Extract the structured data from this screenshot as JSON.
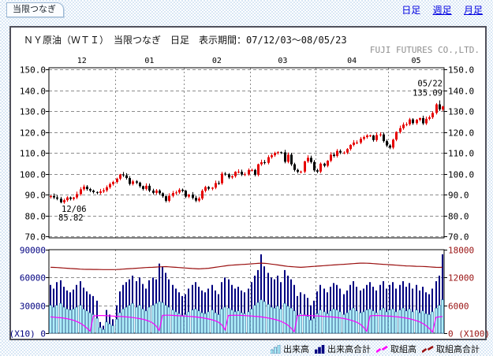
{
  "tab": {
    "label": "当限つなぎ"
  },
  "nav": {
    "links": [
      {
        "label": "日足",
        "underline": false,
        "current": true
      },
      {
        "label": "週足",
        "underline": true,
        "current": false
      },
      {
        "label": "月足",
        "underline": true,
        "current": false
      }
    ]
  },
  "header": {
    "title": "ＮＹ原油（ＷＴＩ）　当限つなぎ　日足　表示期間：07/12/03～08/05/23",
    "company": "FUJI FUTURES CO.,LTD."
  },
  "colors": {
    "up_candle": "#e60000",
    "down_candle": "#000000",
    "volume_front_fill": "#aeeffa",
    "volume_front_stroke": "#2f6f9f",
    "volume_total": "#000080",
    "open_interest_front": "#ff00ff",
    "open_interest_total": "#9a1010",
    "left_axis_label": "#000080",
    "right_axis_label": "#991111",
    "link": "#0000e0",
    "grid": "#8c8c8c"
  },
  "legend": {
    "items": [
      {
        "label": "出来高",
        "type": "bars",
        "color": "#aeeffa",
        "stroke": "#2f6f9f"
      },
      {
        "label": "出来高合計",
        "type": "bars",
        "color": "#000080",
        "stroke": "#000080"
      },
      {
        "label": "取組高",
        "type": "line",
        "color": "#ff00ff"
      },
      {
        "label": "取組高合計",
        "type": "line",
        "color": "#9a1010"
      }
    ]
  },
  "chart_data": [
    {
      "type": "candlestick",
      "title": "ＮＹ原油（ＷＴＩ） 当限つなぎ 日足",
      "period": "07/12/03～08/05/23",
      "x_month_labels": [
        "12",
        "01",
        "02",
        "03",
        "04",
        "05"
      ],
      "month_start_index": [
        0,
        20,
        41,
        61,
        81,
        103
      ],
      "ylim": [
        70,
        150
      ],
      "ytick_step": 10,
      "grid": true,
      "up_color": "#e60000",
      "down_color": "#000000",
      "first_open": 88.8,
      "closes": [
        89.3,
        88.6,
        88.0,
        86.3,
        87.3,
        88.6,
        87.9,
        88.6,
        90.2,
        92.5,
        93.8,
        92.6,
        91.9,
        91.2,
        90.8,
        91.5,
        92.0,
        93.5,
        95.0,
        96.0,
        97.6,
        99.6,
        99.2,
        97.9,
        95.1,
        96.3,
        95.7,
        94.0,
        92.7,
        94.2,
        91.9,
        90.8,
        91.9,
        90.6,
        89.2,
        87.0,
        89.4,
        90.7,
        91.0,
        92.3,
        91.8,
        89.0,
        90.0,
        88.4,
        87.1,
        88.1,
        91.8,
        93.6,
        92.8,
        93.3,
        95.5,
        95.4,
        100.0,
        99.7,
        98.2,
        98.8,
        100.9,
        100.9,
        99.6,
        99.7,
        101.8,
        101.8,
        99.5,
        104.5,
        105.5,
        105.2,
        107.9,
        108.8,
        109.9,
        110.3,
        110.2,
        105.7,
        109.1,
        104.5,
        101.8,
        100.9,
        101.0,
        105.9,
        107.6,
        105.6,
        101.6,
        101.0,
        104.8,
        103.8,
        106.2,
        109.1,
        108.5,
        110.9,
        110.1,
        110.1,
        111.8,
        113.8,
        114.9,
        114.9,
        116.7,
        117.5,
        118.3,
        118.3,
        116.1,
        118.5,
        118.8,
        115.6,
        113.5,
        112.5,
        116.3,
        120.0,
        121.8,
        123.5,
        123.7,
        126.0,
        124.2,
        125.8,
        126.6,
        124.1,
        126.3,
        127.0,
        129.1,
        133.2,
        130.8,
        132.2
      ],
      "low_override": {
        "3": 85.82
      },
      "high_override": {
        "118": 135.09
      },
      "annotations": [
        {
          "date": "12/06",
          "value": 85.82,
          "index": 3,
          "placement": "below"
        },
        {
          "date": "05/22",
          "value": 135.09,
          "index": 118,
          "placement": "above"
        }
      ]
    },
    {
      "type": "bar-line",
      "left_axis": {
        "ticks": [
          0,
          30000,
          60000,
          90000
        ],
        "unit": "(X10)",
        "color": "#000080"
      },
      "right_axis": {
        "ticks": [
          0,
          6000,
          12000,
          18000
        ],
        "unit": "(X100)",
        "color": "#991111"
      },
      "series": [
        {
          "name": "出来高",
          "type": "bar",
          "axis": "left",
          "color": "#aeeffa",
          "values": [
            30000,
            28000,
            30000,
            32000,
            28000,
            26000,
            25000,
            26000,
            28000,
            30000,
            26000,
            24000,
            22000,
            20000,
            16000,
            6000,
            4000,
            12000,
            10000,
            8000,
            15000,
            22000,
            26000,
            28000,
            30000,
            32000,
            28000,
            30000,
            26000,
            24000,
            28000,
            30000,
            32000,
            34000,
            33000,
            30000,
            28000,
            25000,
            23000,
            21000,
            19000,
            20000,
            23000,
            25000,
            26000,
            24000,
            22000,
            21000,
            23000,
            25000,
            22000,
            20000,
            26000,
            28000,
            27000,
            25000,
            23000,
            24000,
            22000,
            21000,
            23000,
            26000,
            30000,
            33000,
            36000,
            34000,
            31000,
            28000,
            27000,
            29000,
            26000,
            32000,
            29000,
            27000,
            24000,
            19000,
            21000,
            20000,
            18000,
            14000,
            16000,
            21000,
            25000,
            23000,
            21000,
            24000,
            26000,
            25000,
            23000,
            20000,
            22000,
            25000,
            27000,
            24000,
            22000,
            23000,
            25000,
            26000,
            24000,
            22000,
            25000,
            27000,
            23000,
            25000,
            26000,
            23000,
            25000,
            27000,
            24000,
            26000,
            23000,
            25000,
            22000,
            24000,
            21000,
            20000,
            23000,
            27000,
            30000,
            36000
          ]
        },
        {
          "name": "出来高合計",
          "type": "bar",
          "axis": "left",
          "color": "#000080",
          "values": [
            52000,
            48000,
            55000,
            57000,
            50000,
            46000,
            44000,
            47000,
            52000,
            56000,
            49000,
            45000,
            42000,
            40000,
            35000,
            12000,
            8000,
            25000,
            20000,
            15000,
            30000,
            45000,
            52000,
            55000,
            58000,
            62000,
            56000,
            60000,
            53000,
            48000,
            57000,
            60000,
            58000,
            75000,
            72000,
            65000,
            58000,
            52000,
            48000,
            44000,
            40000,
            42000,
            48000,
            52000,
            55000,
            50000,
            46000,
            44000,
            48000,
            52000,
            46000,
            42000,
            55000,
            60000,
            58000,
            52000,
            48000,
            50000,
            46000,
            44000,
            48000,
            55000,
            62000,
            68000,
            85000,
            72000,
            65000,
            60000,
            58000,
            62000,
            55000,
            68000,
            62000,
            58000,
            52000,
            40000,
            44000,
            42000,
            38000,
            30000,
            35000,
            45000,
            52000,
            48000,
            44000,
            50000,
            54000,
            52000,
            48000,
            42000,
            46000,
            52000,
            56000,
            50000,
            46000,
            48000,
            52000,
            55000,
            50000,
            46000,
            52000,
            56000,
            48000,
            52000,
            55000,
            48000,
            52000,
            56000,
            50000,
            54000,
            48000,
            52000,
            46000,
            50000,
            44000,
            42000,
            48000,
            56000,
            62000,
            85000
          ]
        },
        {
          "name": "取組高",
          "type": "line",
          "axis": "left",
          "color": "#ff00ff",
          "values": [
            17500,
            17200,
            16900,
            16600,
            16200,
            15600,
            14800,
            13800,
            12500,
            10800,
            8500,
            5500,
            2000,
            18500,
            18800,
            19000,
            19000,
            18800,
            18600,
            18400,
            18200,
            18000,
            17800,
            17500,
            17200,
            16800,
            16300,
            15700,
            15000,
            14000,
            12800,
            11000,
            8000,
            3000,
            19200,
            19400,
            19400,
            19200,
            19000,
            18800,
            18600,
            18400,
            18100,
            17800,
            17500,
            17100,
            16600,
            16000,
            15300,
            14400,
            13300,
            11800,
            9000,
            3500,
            19000,
            19300,
            19400,
            19300,
            19100,
            18900,
            18700,
            18500,
            18200,
            17900,
            17500,
            17000,
            16400,
            15700,
            14900,
            13900,
            12700,
            11000,
            8800,
            5500,
            1500,
            18800,
            19100,
            19200,
            19100,
            18900,
            18700,
            18500,
            18300,
            18100,
            17900,
            17600,
            17300,
            16900,
            16400,
            15800,
            15100,
            14200,
            13100,
            11700,
            9800,
            6500,
            2000,
            18600,
            18900,
            19000,
            18900,
            18700,
            18500,
            18300,
            18000,
            17700,
            17300,
            16800,
            16200,
            15500,
            14600,
            13500,
            12200,
            10500,
            8200,
            5000,
            1200,
            17000,
            17600,
            17900
          ]
        },
        {
          "name": "取組高合計",
          "type": "line",
          "axis": "right",
          "color": "#9a1010",
          "values": [
            14200,
            14180,
            14150,
            14100,
            14050,
            14000,
            13950,
            13900,
            13850,
            13800,
            13780,
            13760,
            13750,
            13740,
            13730,
            13720,
            13710,
            13700,
            13700,
            13700,
            13720,
            13750,
            13800,
            13850,
            13900,
            13950,
            14000,
            14050,
            14100,
            14150,
            14180,
            14200,
            14250,
            14300,
            14320,
            14350,
            14300,
            14250,
            14200,
            14150,
            14100,
            14050,
            14000,
            13950,
            13900,
            13850,
            13900,
            13950,
            14000,
            14100,
            14200,
            14300,
            14400,
            14500,
            14600,
            14650,
            14700,
            14750,
            14800,
            14850,
            14900,
            14950,
            15000,
            15050,
            15100,
            15050,
            15000,
            14900,
            14800,
            14700,
            14600,
            14500,
            14400,
            14350,
            14300,
            14250,
            14200,
            14250,
            14300,
            14350,
            14400,
            14450,
            14500,
            14550,
            14600,
            14650,
            14700,
            14750,
            14800,
            14850,
            14900,
            14950,
            15000,
            15050,
            15100,
            15100,
            15080,
            15050,
            15000,
            14950,
            14900,
            14850,
            14800,
            14750,
            14700,
            14650,
            14600,
            14550,
            14500,
            14480,
            14450,
            14420,
            14400,
            14380,
            14350,
            14300,
            14250,
            14200,
            14180,
            14200
          ]
        }
      ]
    }
  ]
}
